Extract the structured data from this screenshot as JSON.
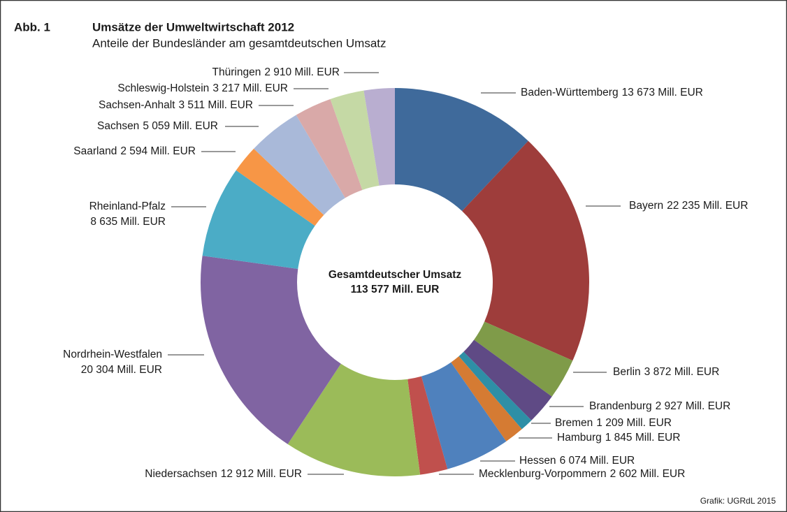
{
  "chart_data": {
    "type": "donut",
    "figure_label": "Abb. 1",
    "title": "Umsätze der Umweltwirtschaft 2012",
    "subtitle": "Anteile der Bundesländer am gesamtdeutschen Umsatz",
    "center_label": [
      "Gesamtdeutscher Umsatz",
      "113 577 Mill. EUR"
    ],
    "source": "Grafik: UGRdL 2015",
    "categories": [
      "Baden-Württemberg",
      "Bayern",
      "Berlin",
      "Brandenburg",
      "Bremen",
      "Hamburg",
      "Hessen",
      "Mecklenburg-Vorpommern",
      "Niedersachsen",
      "Nordrhein-Westfalen",
      "Rheinland-Pfalz",
      "Saarland",
      "Sachsen",
      "Sachsen-Anhalt",
      "Schleswig-Holstein",
      "Thüringen"
    ],
    "values": [
      13673,
      22235,
      3872,
      2927,
      1209,
      1845,
      6074,
      2602,
      12912,
      20304,
      8635,
      2594,
      5059,
      3511,
      3217,
      2910
    ],
    "value_labels": [
      "13 673 Mill. EUR",
      "22 235 Mill. EUR",
      "3 872 Mill. EUR",
      "2 927 Mill. EUR",
      "1 209 Mill. EUR",
      "1 845 Mill. EUR",
      "6 074 Mill. EUR",
      "2 602 Mill. EUR",
      "12 912 Mill. EUR",
      "20 304 Mill. EUR",
      "8 635 Mill. EUR",
      "2 594 Mill. EUR",
      "5 059 Mill. EUR",
      "3 511 Mill. EUR",
      "3 217 Mill. EUR",
      "2 910 Mill. EUR"
    ],
    "colors": [
      "#3f6a9b",
      "#9e3d3b",
      "#7f9b49",
      "#5f4a85",
      "#2e8fa6",
      "#d57b33",
      "#4f81bd",
      "#c0504d",
      "#9bbb59",
      "#8064a2",
      "#4bacc6",
      "#f79646",
      "#a9b9d9",
      "#d9a9a8",
      "#c5d9a5",
      "#b9aed0"
    ]
  }
}
